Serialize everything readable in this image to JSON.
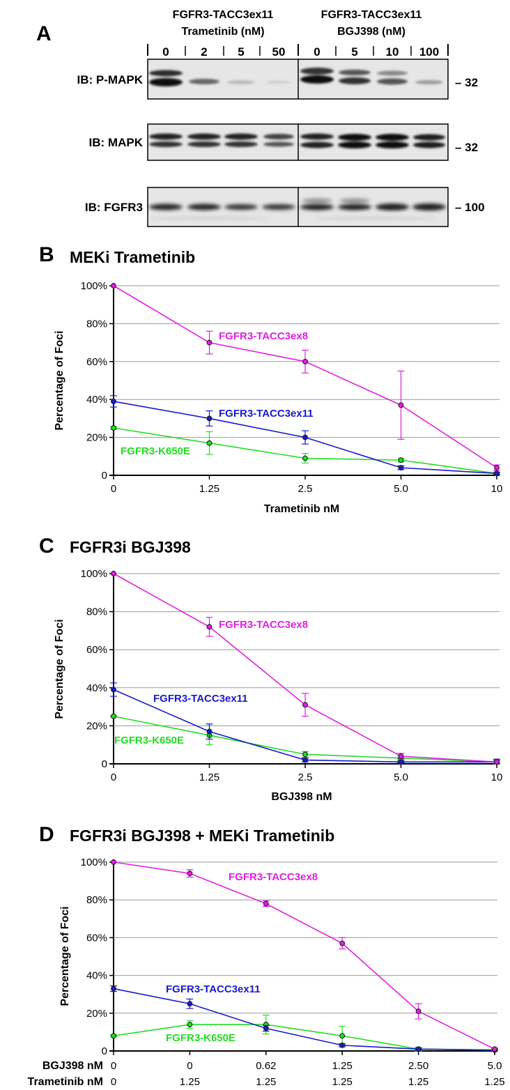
{
  "blot": {
    "panel": "A",
    "group1": {
      "line1": "FGFR3-TACC3ex11",
      "line2": "Trametinib (nM)",
      "lanes": [
        "0",
        "2",
        "5",
        "50"
      ]
    },
    "group2": {
      "line1": "FGFR3-TACC3ex11",
      "line2": "BGJ398 (nM)",
      "lanes": [
        "0",
        "5",
        "10",
        "100"
      ]
    },
    "rows": [
      {
        "label": "IB: P-MAPK",
        "marker": "– 32"
      },
      {
        "label": "IB: MAPK",
        "marker": "– 32"
      },
      {
        "label": "IB: FGFR3",
        "marker": "– 100"
      }
    ]
  },
  "chart_data": [
    {
      "panel": "B",
      "type": "line",
      "title": "MEKi Trametinib",
      "xlabel": "Trametinib nM",
      "ylabel": "Percentage of Foci",
      "categories": [
        "0",
        "1.25",
        "2.5",
        "5.0",
        "10"
      ],
      "yticks": [
        "0",
        "20%",
        "40%",
        "60%",
        "80%",
        "100%"
      ],
      "ylim": [
        0,
        100
      ],
      "grid": true,
      "series": [
        {
          "name": "FGFR3-TACC3ex8",
          "color": "#e020e0",
          "values": [
            100,
            70,
            60,
            37,
            4
          ],
          "errors": [
            0,
            6,
            6,
            18,
            1.5
          ]
        },
        {
          "name": "FGFR3-TACC3ex11",
          "color": "#1a1acc",
          "values": [
            39,
            30,
            20,
            4,
            1
          ],
          "errors": [
            3,
            4,
            3.5,
            1,
            0.5
          ]
        },
        {
          "name": "FGFR3-K650E",
          "color": "#22dd22",
          "values": [
            25,
            17,
            9,
            8,
            1
          ],
          "errors": [
            0.8,
            6,
            2.5,
            1,
            0.5
          ]
        }
      ]
    },
    {
      "panel": "C",
      "type": "line",
      "title": "FGFR3i BGJ398",
      "xlabel": "BGJ398 nM",
      "ylabel": "Percentage of Foci",
      "categories": [
        "0",
        "1.25",
        "2.5",
        "5.0",
        "10"
      ],
      "yticks": [
        "0",
        "20%",
        "40%",
        "60%",
        "80%",
        "100%"
      ],
      "ylim": [
        0,
        100
      ],
      "grid": true,
      "series": [
        {
          "name": "FGFR3-TACC3ex8",
          "color": "#e020e0",
          "values": [
            100,
            72,
            31,
            4,
            1
          ],
          "errors": [
            0,
            5,
            6,
            1.5,
            1
          ]
        },
        {
          "name": "FGFR3-TACC3ex11",
          "color": "#1a1acc",
          "values": [
            39,
            17,
            2,
            1,
            1
          ],
          "errors": [
            3.5,
            4,
            1,
            0.5,
            1.5
          ]
        },
        {
          "name": "FGFR3-K650E",
          "color": "#22dd22",
          "values": [
            25,
            15,
            5,
            3,
            1
          ],
          "errors": [
            0.5,
            5,
            1.5,
            1,
            0.5
          ]
        }
      ]
    },
    {
      "panel": "D",
      "type": "line",
      "title": "FGFR3i BGJ398 + MEKi Trametinib",
      "xlabel": "",
      "ylabel": "Percentage of Foci",
      "xrows": [
        {
          "label": "BGJ398 nM",
          "values": [
            "0",
            "0",
            "0.62",
            "1.25",
            "2.50",
            "5.0"
          ]
        },
        {
          "label": "Trametinib nM",
          "values": [
            "0",
            "1.25",
            "1.25",
            "1.25",
            "1.25",
            "1.25"
          ]
        }
      ],
      "yticks": [
        "0",
        "20%",
        "40%",
        "60%",
        "80%",
        "100%"
      ],
      "ylim": [
        0,
        100
      ],
      "grid": true,
      "series": [
        {
          "name": "FGFR3-TACC3ex8",
          "color": "#e020e0",
          "values": [
            100,
            94,
            78,
            57,
            21,
            1
          ],
          "errors": [
            0,
            2,
            1.5,
            3,
            4,
            0.5
          ]
        },
        {
          "name": "FGFR3-TACC3ex11",
          "color": "#1a1acc",
          "values": [
            33,
            25,
            12,
            3,
            1,
            0.5
          ],
          "errors": [
            1.5,
            2.5,
            1.5,
            0.8,
            0.5,
            0.3
          ]
        },
        {
          "name": "FGFR3-K650E",
          "color": "#22dd22",
          "values": [
            8,
            14,
            14,
            8,
            1,
            0.5
          ],
          "errors": [
            0.5,
            2,
            5,
            5,
            1,
            0.3
          ]
        }
      ]
    }
  ]
}
